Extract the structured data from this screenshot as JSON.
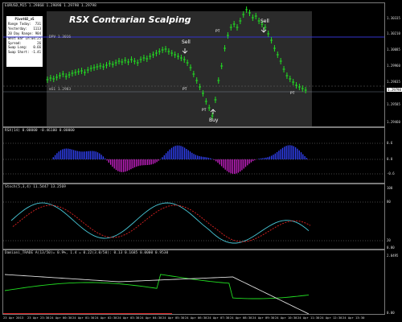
{
  "main": {
    "symbol_line": "EURUSD,M15  1.29868 1.29898 1.29798 1.29798",
    "title": "RSX Contrarian Scalping",
    "dpv_label": "DPV  1.3016",
    "ms_label": "mS1  1.2983",
    "price_axis": [
      "1.30335",
      "1.30210",
      "1.30085",
      "1.29960",
      "1.29835",
      "1.29710",
      "1.29585",
      "1.29460"
    ],
    "current_price": "1.29798",
    "signals": {
      "sell1": "Sell",
      "sell2": "Sell",
      "buy": "Buy",
      "pt1": "PT",
      "pt2": "PT",
      "pt3": "PT",
      "pt4": "PT"
    }
  },
  "info_box": {
    "header": "Pivot02_v5",
    "rows": [
      {
        "label": "Range Today:",
        "value": "731"
      },
      {
        "label": "Yesterday:",
        "value": "1113"
      },
      {
        "label": "20 Day Range:",
        "value": "904"
      },
      {
        "label": "Next Bar In:",
        "value": "04:25"
      },
      {
        "label": "Spread:",
        "value": "26"
      },
      {
        "label": "Swap Long:",
        "value": "0.66"
      },
      {
        "label": "Swap Short:",
        "value": "-1.41"
      }
    ]
  },
  "rsx": {
    "label": "RSX(14) 0.00000 -0.46100 0.00000",
    "axis": [
      "0.6",
      "0.0",
      "-0.6"
    ]
  },
  "stoch": {
    "label": "Stoch(5,3,4) 11.5447 13.2569",
    "axis": [
      "100",
      "80",
      "20",
      "0.00"
    ]
  },
  "damiani": {
    "label": "Damiani_TRADE  A(13/50)=  0.9%, 1.4 = 0.22(3.0/50): 0.13  0.1685  0.0000  0.9530",
    "axis": [
      "2.0495",
      "0.00"
    ]
  },
  "time_axis": [
    "23 Apr 2013",
    "23 Apr 23:30",
    "24 Apr 00:30",
    "24 Apr 01:30",
    "24 Apr 02:30",
    "24 Apr 03:30",
    "24 Apr 04:30",
    "24 Apr 05:30",
    "24 Apr 06:30",
    "24 Apr 07:30",
    "24 Apr 08:30",
    "24 Apr 09:30",
    "24 Apr 10:30",
    "24 Apr 11:30",
    "24 Apr 12:30",
    "24 Apr 13:30"
  ]
}
